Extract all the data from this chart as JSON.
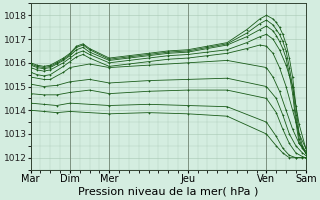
{
  "bg_color": "#d4ede0",
  "grid_color": "#a8c8b4",
  "line_color": "#1a5c1a",
  "marker_color": "#1a5c1a",
  "xlabel": "Pression niveau de la mer( hPa )",
  "xlabel_fontsize": 8,
  "ylabel_fontsize": 6.5,
  "tick_fontsize": 7,
  "ylim": [
    1011.5,
    1018.5
  ],
  "yticks": [
    1012,
    1013,
    1014,
    1015,
    1016,
    1017,
    1018
  ],
  "day_labels": [
    "Mar",
    "Dim",
    "Mer",
    "Jeu",
    "Ven",
    "Sam"
  ],
  "day_positions": [
    0,
    24,
    48,
    96,
    144,
    168
  ],
  "total_hours": 168,
  "lines": [
    {
      "x": [
        0,
        4,
        8,
        12,
        16,
        20,
        24,
        28,
        32,
        36,
        48,
        60,
        72,
        84,
        96,
        108,
        120,
        132,
        140,
        144,
        148,
        150,
        152,
        154,
        156,
        158,
        160,
        162,
        164,
        166,
        168
      ],
      "y": [
        1016.0,
        1015.9,
        1015.85,
        1015.9,
        1016.05,
        1016.2,
        1016.4,
        1016.7,
        1016.8,
        1016.6,
        1016.2,
        1016.3,
        1016.4,
        1016.5,
        1016.55,
        1016.7,
        1016.85,
        1017.4,
        1017.85,
        1018.0,
        1017.85,
        1017.7,
        1017.5,
        1017.2,
        1016.8,
        1016.2,
        1015.4,
        1014.2,
        1013.0,
        1012.5,
        1012.2
      ]
    },
    {
      "x": [
        0,
        4,
        8,
        12,
        16,
        20,
        24,
        28,
        32,
        36,
        48,
        60,
        72,
        84,
        96,
        108,
        120,
        132,
        140,
        144,
        148,
        150,
        152,
        154,
        156,
        158,
        160,
        162,
        164,
        166,
        168
      ],
      "y": [
        1015.95,
        1015.85,
        1015.8,
        1015.85,
        1016.0,
        1016.15,
        1016.35,
        1016.65,
        1016.75,
        1016.55,
        1016.15,
        1016.25,
        1016.35,
        1016.45,
        1016.5,
        1016.65,
        1016.8,
        1017.25,
        1017.65,
        1017.8,
        1017.6,
        1017.4,
        1017.2,
        1016.9,
        1016.5,
        1015.8,
        1015.0,
        1013.8,
        1012.8,
        1012.4,
        1012.2
      ]
    },
    {
      "x": [
        0,
        4,
        8,
        12,
        16,
        20,
        24,
        28,
        32,
        36,
        48,
        60,
        72,
        84,
        96,
        108,
        120,
        132,
        140,
        144,
        148,
        150,
        152,
        154,
        156,
        158,
        160,
        162,
        164,
        168
      ],
      "y": [
        1015.9,
        1015.8,
        1015.75,
        1015.8,
        1015.95,
        1016.1,
        1016.3,
        1016.55,
        1016.65,
        1016.45,
        1016.1,
        1016.2,
        1016.3,
        1016.4,
        1016.45,
        1016.6,
        1016.75,
        1017.1,
        1017.4,
        1017.55,
        1017.35,
        1017.15,
        1016.9,
        1016.6,
        1016.2,
        1015.5,
        1014.7,
        1013.5,
        1012.6,
        1012.2
      ]
    },
    {
      "x": [
        0,
        4,
        8,
        12,
        20,
        24,
        28,
        32,
        36,
        48,
        60,
        72,
        84,
        96,
        108,
        120,
        132,
        140,
        144,
        148,
        152,
        156,
        160,
        164,
        168
      ],
      "y": [
        1015.8,
        1015.7,
        1015.65,
        1015.7,
        1016.0,
        1016.2,
        1016.4,
        1016.5,
        1016.35,
        1016.0,
        1016.1,
        1016.2,
        1016.3,
        1016.35,
        1016.45,
        1016.55,
        1016.85,
        1017.1,
        1017.2,
        1017.0,
        1016.55,
        1015.9,
        1015.0,
        1013.4,
        1012.4
      ]
    },
    {
      "x": [
        0,
        4,
        8,
        12,
        20,
        24,
        28,
        32,
        36,
        48,
        60,
        72,
        84,
        96,
        108,
        120,
        132,
        140,
        144,
        148,
        152,
        156,
        160,
        164,
        168
      ],
      "y": [
        1015.6,
        1015.5,
        1015.45,
        1015.5,
        1015.85,
        1016.05,
        1016.25,
        1016.35,
        1016.2,
        1015.85,
        1015.95,
        1016.05,
        1016.15,
        1016.2,
        1016.3,
        1016.4,
        1016.6,
        1016.75,
        1016.7,
        1016.4,
        1015.8,
        1015.0,
        1014.0,
        1013.0,
        1012.4
      ]
    },
    {
      "x": [
        0,
        8,
        12,
        20,
        24,
        36,
        48,
        72,
        96,
        120,
        144,
        148,
        152,
        156,
        160,
        164,
        168
      ],
      "y": [
        1015.4,
        1015.3,
        1015.3,
        1015.6,
        1015.8,
        1015.95,
        1015.8,
        1015.9,
        1016.0,
        1016.1,
        1015.8,
        1015.4,
        1014.8,
        1014.0,
        1013.2,
        1012.6,
        1012.3
      ]
    },
    {
      "x": [
        0,
        8,
        16,
        24,
        36,
        48,
        72,
        96,
        120,
        144,
        150,
        154,
        158,
        162,
        166,
        168
      ],
      "y": [
        1015.1,
        1015.0,
        1015.05,
        1015.2,
        1015.3,
        1015.15,
        1015.25,
        1015.3,
        1015.35,
        1015.0,
        1014.5,
        1013.8,
        1013.0,
        1012.5,
        1012.2,
        1012.1
      ]
    },
    {
      "x": [
        0,
        8,
        16,
        24,
        36,
        48,
        72,
        96,
        120,
        144,
        150,
        154,
        158,
        162,
        166,
        168
      ],
      "y": [
        1014.7,
        1014.65,
        1014.65,
        1014.75,
        1014.85,
        1014.7,
        1014.8,
        1014.85,
        1014.85,
        1014.5,
        1013.9,
        1013.2,
        1012.6,
        1012.2,
        1012.05,
        1012.0
      ]
    },
    {
      "x": [
        0,
        8,
        16,
        24,
        48,
        72,
        96,
        120,
        144,
        150,
        154,
        158,
        162,
        166,
        168
      ],
      "y": [
        1014.3,
        1014.25,
        1014.2,
        1014.3,
        1014.2,
        1014.25,
        1014.2,
        1014.15,
        1013.5,
        1012.9,
        1012.4,
        1012.1,
        1012.0,
        1012.0,
        1012.0
      ]
    },
    {
      "x": [
        0,
        8,
        16,
        24,
        48,
        72,
        96,
        120,
        144,
        150,
        154,
        158,
        162,
        168
      ],
      "y": [
        1014.0,
        1013.95,
        1013.9,
        1013.95,
        1013.85,
        1013.9,
        1013.85,
        1013.75,
        1013.0,
        1012.5,
        1012.2,
        1012.0,
        1012.0,
        1012.0
      ]
    }
  ]
}
